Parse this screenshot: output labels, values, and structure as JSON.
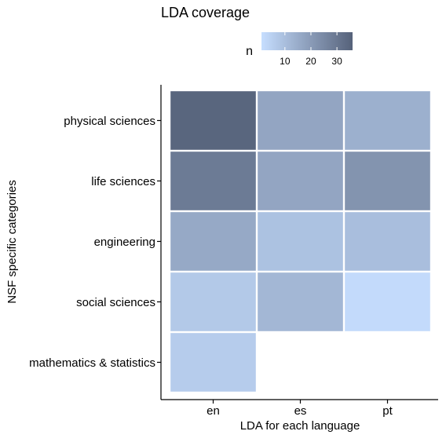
{
  "chart_data": {
    "type": "heatmap",
    "title": "LDA coverage",
    "xlabel": "LDA for each language",
    "ylabel": "NSF specific categories",
    "x_categories": [
      "en",
      "es",
      "pt"
    ],
    "y_categories": [
      "physical sciences",
      "life sciences",
      "engineering",
      "social sciences",
      "mathematics & statistics"
    ],
    "cells": [
      {
        "x": "en",
        "y": "physical sciences",
        "n": 35
      },
      {
        "x": "es",
        "y": "physical sciences",
        "n": 17
      },
      {
        "x": "pt",
        "y": "physical sciences",
        "n": 14
      },
      {
        "x": "en",
        "y": "life sciences",
        "n": 29
      },
      {
        "x": "es",
        "y": "life sciences",
        "n": 17
      },
      {
        "x": "pt",
        "y": "life sciences",
        "n": 22
      },
      {
        "x": "en",
        "y": "engineering",
        "n": 16
      },
      {
        "x": "es",
        "y": "engineering",
        "n": 9
      },
      {
        "x": "pt",
        "y": "engineering",
        "n": 10
      },
      {
        "x": "en",
        "y": "social sciences",
        "n": 7
      },
      {
        "x": "es",
        "y": "social sciences",
        "n": 12
      },
      {
        "x": "pt",
        "y": "social sciences",
        "n": 2
      },
      {
        "x": "en",
        "y": "mathematics & statistics",
        "n": 6
      }
    ],
    "legend": {
      "title": "n",
      "position": "top",
      "ticks": [
        10,
        20,
        30
      ],
      "range": [
        1,
        36
      ]
    },
    "colors": {
      "low": "#c6deff",
      "high": "#56627a",
      "tile_border": "#ffffff",
      "axis": "#000000"
    },
    "grid": false
  }
}
